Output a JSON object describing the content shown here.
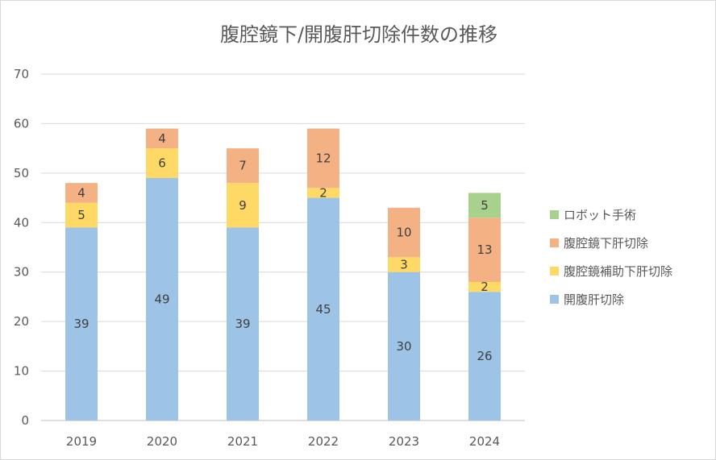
{
  "chart_data": {
    "type": "bar",
    "stacked": true,
    "title": "腹腔鏡下/開腹肝切除件数の推移",
    "categories": [
      "2019",
      "2020",
      "2021",
      "2022",
      "2023",
      "2024"
    ],
    "y_ticks": [
      "0",
      "10",
      "20",
      "30",
      "40",
      "50",
      "60",
      "70"
    ],
    "ylim": [
      0,
      70
    ],
    "grid": true,
    "legend_position": "right",
    "series": [
      {
        "name": "開腹肝切除",
        "color": "#9dc3e6",
        "values": [
          39,
          49,
          39,
          45,
          30,
          26
        ],
        "labels": [
          "39",
          "49",
          "39",
          "45",
          "30",
          "26"
        ]
      },
      {
        "name": "腹腔鏡補助下肝切除",
        "color": "#ffd966",
        "values": [
          5,
          6,
          9,
          2,
          3,
          2
        ],
        "labels": [
          "5",
          "6",
          "9",
          "2",
          "3",
          "2"
        ]
      },
      {
        "name": "腹腔鏡下肝切除",
        "color": "#f4b183",
        "values": [
          4,
          4,
          7,
          12,
          10,
          13
        ],
        "labels": [
          "4",
          "4",
          "7",
          "12",
          "10",
          "13"
        ]
      },
      {
        "name": "ロボット手術",
        "color": "#a9d18e",
        "values": [
          0,
          0,
          0,
          0,
          0,
          5
        ],
        "labels": [
          "",
          "",
          "",
          "",
          "",
          "5"
        ]
      }
    ],
    "legend_order": [
      3,
      2,
      1,
      0
    ]
  }
}
